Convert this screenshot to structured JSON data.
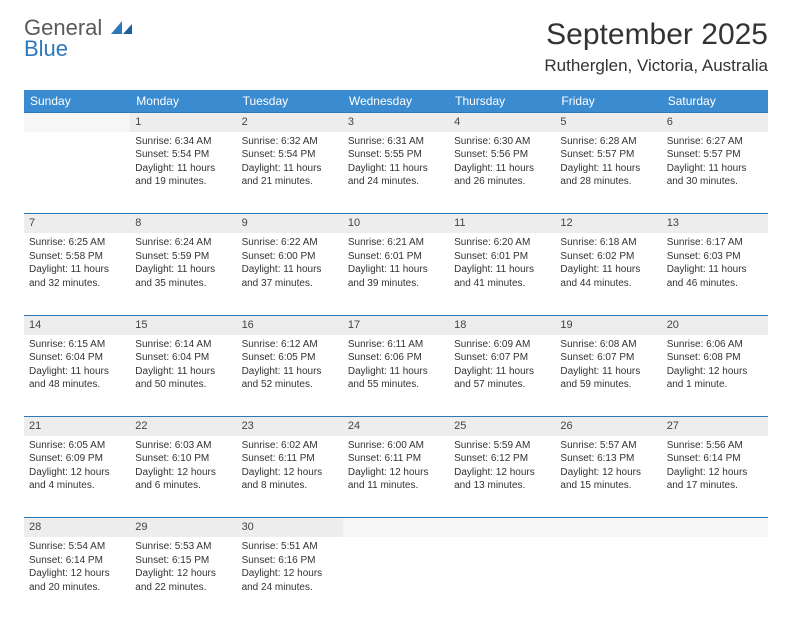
{
  "logo": {
    "line1": "General",
    "line2": "Blue"
  },
  "header": {
    "month_title": "September 2025",
    "location": "Rutherglen, Victoria, Australia"
  },
  "colors": {
    "header_bg": "#3b8bd0",
    "accent_blue": "#2d78bb",
    "daynum_bg": "#ededed",
    "text": "#333333"
  },
  "days_of_week": [
    "Sunday",
    "Monday",
    "Tuesday",
    "Wednesday",
    "Thursday",
    "Friday",
    "Saturday"
  ],
  "weeks": [
    {
      "nums": [
        "",
        "1",
        "2",
        "3",
        "4",
        "5",
        "6"
      ],
      "cells": [
        {
          "empty": true
        },
        {
          "sunrise": "Sunrise: 6:34 AM",
          "sunset": "Sunset: 5:54 PM",
          "daylight": "Daylight: 11 hours and 19 minutes."
        },
        {
          "sunrise": "Sunrise: 6:32 AM",
          "sunset": "Sunset: 5:54 PM",
          "daylight": "Daylight: 11 hours and 21 minutes."
        },
        {
          "sunrise": "Sunrise: 6:31 AM",
          "sunset": "Sunset: 5:55 PM",
          "daylight": "Daylight: 11 hours and 24 minutes."
        },
        {
          "sunrise": "Sunrise: 6:30 AM",
          "sunset": "Sunset: 5:56 PM",
          "daylight": "Daylight: 11 hours and 26 minutes."
        },
        {
          "sunrise": "Sunrise: 6:28 AM",
          "sunset": "Sunset: 5:57 PM",
          "daylight": "Daylight: 11 hours and 28 minutes."
        },
        {
          "sunrise": "Sunrise: 6:27 AM",
          "sunset": "Sunset: 5:57 PM",
          "daylight": "Daylight: 11 hours and 30 minutes."
        }
      ]
    },
    {
      "nums": [
        "7",
        "8",
        "9",
        "10",
        "11",
        "12",
        "13"
      ],
      "cells": [
        {
          "sunrise": "Sunrise: 6:25 AM",
          "sunset": "Sunset: 5:58 PM",
          "daylight": "Daylight: 11 hours and 32 minutes."
        },
        {
          "sunrise": "Sunrise: 6:24 AM",
          "sunset": "Sunset: 5:59 PM",
          "daylight": "Daylight: 11 hours and 35 minutes."
        },
        {
          "sunrise": "Sunrise: 6:22 AM",
          "sunset": "Sunset: 6:00 PM",
          "daylight": "Daylight: 11 hours and 37 minutes."
        },
        {
          "sunrise": "Sunrise: 6:21 AM",
          "sunset": "Sunset: 6:01 PM",
          "daylight": "Daylight: 11 hours and 39 minutes."
        },
        {
          "sunrise": "Sunrise: 6:20 AM",
          "sunset": "Sunset: 6:01 PM",
          "daylight": "Daylight: 11 hours and 41 minutes."
        },
        {
          "sunrise": "Sunrise: 6:18 AM",
          "sunset": "Sunset: 6:02 PM",
          "daylight": "Daylight: 11 hours and 44 minutes."
        },
        {
          "sunrise": "Sunrise: 6:17 AM",
          "sunset": "Sunset: 6:03 PM",
          "daylight": "Daylight: 11 hours and 46 minutes."
        }
      ]
    },
    {
      "nums": [
        "14",
        "15",
        "16",
        "17",
        "18",
        "19",
        "20"
      ],
      "cells": [
        {
          "sunrise": "Sunrise: 6:15 AM",
          "sunset": "Sunset: 6:04 PM",
          "daylight": "Daylight: 11 hours and 48 minutes."
        },
        {
          "sunrise": "Sunrise: 6:14 AM",
          "sunset": "Sunset: 6:04 PM",
          "daylight": "Daylight: 11 hours and 50 minutes."
        },
        {
          "sunrise": "Sunrise: 6:12 AM",
          "sunset": "Sunset: 6:05 PM",
          "daylight": "Daylight: 11 hours and 52 minutes."
        },
        {
          "sunrise": "Sunrise: 6:11 AM",
          "sunset": "Sunset: 6:06 PM",
          "daylight": "Daylight: 11 hours and 55 minutes."
        },
        {
          "sunrise": "Sunrise: 6:09 AM",
          "sunset": "Sunset: 6:07 PM",
          "daylight": "Daylight: 11 hours and 57 minutes."
        },
        {
          "sunrise": "Sunrise: 6:08 AM",
          "sunset": "Sunset: 6:07 PM",
          "daylight": "Daylight: 11 hours and 59 minutes."
        },
        {
          "sunrise": "Sunrise: 6:06 AM",
          "sunset": "Sunset: 6:08 PM",
          "daylight": "Daylight: 12 hours and 1 minute."
        }
      ]
    },
    {
      "nums": [
        "21",
        "22",
        "23",
        "24",
        "25",
        "26",
        "27"
      ],
      "cells": [
        {
          "sunrise": "Sunrise: 6:05 AM",
          "sunset": "Sunset: 6:09 PM",
          "daylight": "Daylight: 12 hours and 4 minutes."
        },
        {
          "sunrise": "Sunrise: 6:03 AM",
          "sunset": "Sunset: 6:10 PM",
          "daylight": "Daylight: 12 hours and 6 minutes."
        },
        {
          "sunrise": "Sunrise: 6:02 AM",
          "sunset": "Sunset: 6:11 PM",
          "daylight": "Daylight: 12 hours and 8 minutes."
        },
        {
          "sunrise": "Sunrise: 6:00 AM",
          "sunset": "Sunset: 6:11 PM",
          "daylight": "Daylight: 12 hours and 11 minutes."
        },
        {
          "sunrise": "Sunrise: 5:59 AM",
          "sunset": "Sunset: 6:12 PM",
          "daylight": "Daylight: 12 hours and 13 minutes."
        },
        {
          "sunrise": "Sunrise: 5:57 AM",
          "sunset": "Sunset: 6:13 PM",
          "daylight": "Daylight: 12 hours and 15 minutes."
        },
        {
          "sunrise": "Sunrise: 5:56 AM",
          "sunset": "Sunset: 6:14 PM",
          "daylight": "Daylight: 12 hours and 17 minutes."
        }
      ]
    },
    {
      "nums": [
        "28",
        "29",
        "30",
        "",
        "",
        "",
        ""
      ],
      "cells": [
        {
          "sunrise": "Sunrise: 5:54 AM",
          "sunset": "Sunset: 6:14 PM",
          "daylight": "Daylight: 12 hours and 20 minutes."
        },
        {
          "sunrise": "Sunrise: 5:53 AM",
          "sunset": "Sunset: 6:15 PM",
          "daylight": "Daylight: 12 hours and 22 minutes."
        },
        {
          "sunrise": "Sunrise: 5:51 AM",
          "sunset": "Sunset: 6:16 PM",
          "daylight": "Daylight: 12 hours and 24 minutes."
        },
        {
          "empty": true
        },
        {
          "empty": true
        },
        {
          "empty": true
        },
        {
          "empty": true
        }
      ]
    }
  ]
}
